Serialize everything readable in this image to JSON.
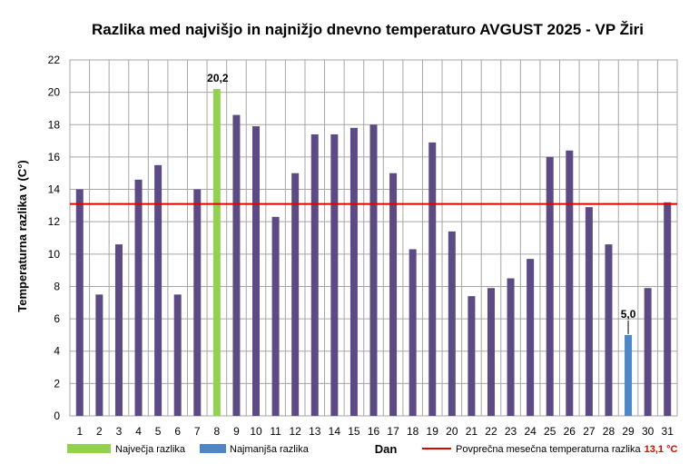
{
  "colors": {
    "bar": "#5b4a84",
    "max_bar": "#92d050",
    "min_bar": "#4f86c6",
    "avg_line": "#e00000",
    "grid": "#a6a6a6"
  },
  "legend": {
    "max_label": "Največja razlika",
    "min_label": "Najmanjša razlika",
    "avg_label": "Povprečna mesečna temperaturna razlika",
    "avg_value": "13,1 °C"
  },
  "chart_data": {
    "type": "bar",
    "title": "Razlika med najvišjo  in najnižjo  dnevno  temperaturo  AVGUST 2025 - VP Žiri",
    "xlabel": "Dan",
    "ylabel": "Temperaturna razlika v (C°)",
    "ylim": [
      0,
      22
    ],
    "yticks": [
      0,
      2,
      4,
      6,
      8,
      10,
      12,
      14,
      16,
      18,
      20,
      22
    ],
    "categories": [
      "1",
      "2",
      "3",
      "4",
      "5",
      "6",
      "7",
      "8",
      "9",
      "10",
      "11",
      "12",
      "13",
      "14",
      "15",
      "16",
      "17",
      "18",
      "19",
      "20",
      "21",
      "22",
      "23",
      "24",
      "25",
      "26",
      "27",
      "28",
      "29",
      "30",
      "31"
    ],
    "values": [
      14.0,
      7.5,
      10.6,
      14.6,
      15.5,
      7.5,
      14.0,
      20.2,
      18.6,
      17.9,
      12.3,
      15.0,
      17.4,
      17.4,
      17.8,
      18.0,
      15.0,
      10.3,
      16.9,
      11.4,
      7.4,
      7.9,
      8.5,
      9.7,
      16.0,
      16.4,
      12.9,
      10.6,
      5.0,
      7.9,
      13.2
    ],
    "average": 13.1,
    "max_index": 7,
    "min_index": 28,
    "data_labels": {
      "max": "20,2",
      "min": "5,0"
    },
    "grid": true,
    "legend_position": "bottom"
  }
}
